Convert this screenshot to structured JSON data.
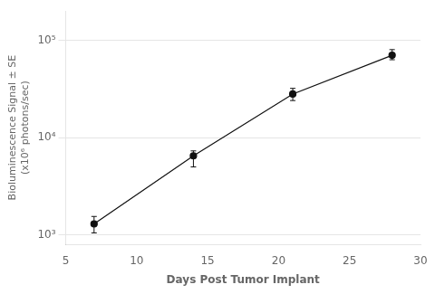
{
  "chart_data": {
    "type": "line",
    "x": [
      7,
      14,
      21,
      28
    ],
    "values": [
      1300,
      6500,
      28000,
      70000
    ],
    "error_lower": [
      250,
      1500,
      4000,
      7000
    ],
    "error_upper": [
      250,
      800,
      4000,
      10000
    ],
    "xlabel": "Days Post Tumor Implant",
    "ylabel": "Bioluminescence Signal ± SE\n(x10⁶ photons/sec)",
    "xlim": [
      5,
      30
    ],
    "ylim": [
      800,
      200000
    ],
    "xticks": [
      5,
      10,
      15,
      20,
      25,
      30
    ],
    "yticks": [
      {
        "value": 1000,
        "label": "10³"
      },
      {
        "value": 10000,
        "label": "10⁴"
      },
      {
        "value": 100000,
        "label": "10⁵"
      }
    ],
    "log": "y",
    "grid": "y",
    "color": "#111111",
    "marker": "circle"
  }
}
